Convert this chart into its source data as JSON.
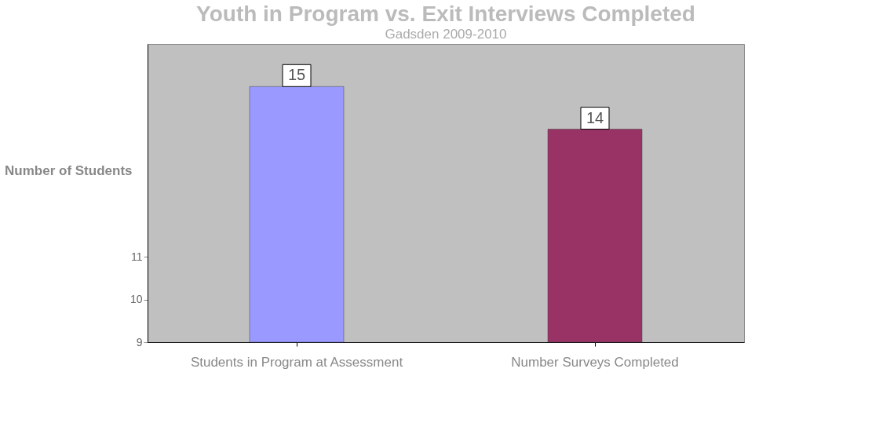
{
  "chart_data": {
    "type": "bar",
    "title": "Youth in Program vs. Exit Interviews Completed",
    "subtitle": "Gadsden 2009-2010",
    "ylabel": "Number of Students",
    "categories": [
      "Students in Program at Assessment",
      "Number Surveys Completed"
    ],
    "values": [
      15,
      14
    ],
    "colors": [
      "#9999ff",
      "#993366"
    ],
    "ylim": [
      9,
      16
    ],
    "yticks": [
      9,
      10,
      11
    ],
    "data_labels": true,
    "grid": false
  }
}
